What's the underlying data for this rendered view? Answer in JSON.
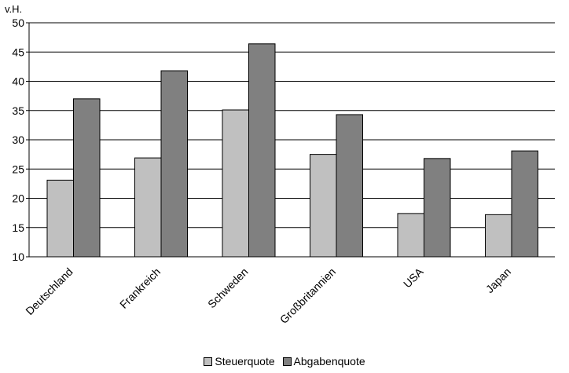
{
  "chart_data": {
    "type": "bar",
    "ylabel": "v.H.",
    "ylim": [
      10,
      50
    ],
    "yticks": [
      10,
      15,
      20,
      25,
      30,
      35,
      40,
      45,
      50
    ],
    "grid": true,
    "legend_position": "bottom",
    "categories": [
      "Deutschland",
      "Frankreich",
      "Schweden",
      "Großbritannien",
      "USA",
      "Japan"
    ],
    "series": [
      {
        "name": "Steuerquote",
        "color": "#c0c0c0",
        "values": [
          23.1,
          26.9,
          35.1,
          27.5,
          17.4,
          17.2
        ]
      },
      {
        "name": "Abgabenquote",
        "color": "#808080",
        "values": [
          37.0,
          41.8,
          46.4,
          34.3,
          26.8,
          28.1
        ]
      }
    ]
  }
}
